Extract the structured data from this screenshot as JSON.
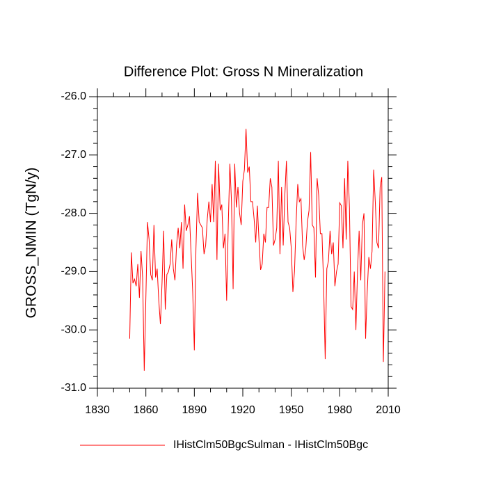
{
  "chart_data": {
    "type": "line",
    "title": "Difference Plot: Gross N Mineralization",
    "y_label": "GROSS_NMIN  (TgN/y)",
    "x": [
      1850,
      1851,
      1852,
      1853,
      1854,
      1855,
      1856,
      1857,
      1858,
      1859,
      1860,
      1861,
      1862,
      1863,
      1864,
      1865,
      1866,
      1867,
      1868,
      1869,
      1870,
      1871,
      1872,
      1873,
      1874,
      1875,
      1876,
      1877,
      1878,
      1879,
      1880,
      1881,
      1882,
      1883,
      1884,
      1885,
      1886,
      1887,
      1888,
      1889,
      1890,
      1891,
      1892,
      1893,
      1894,
      1895,
      1896,
      1897,
      1898,
      1899,
      1900,
      1901,
      1902,
      1903,
      1904,
      1905,
      1906,
      1907,
      1908,
      1909,
      1910,
      1911,
      1912,
      1913,
      1914,
      1915,
      1916,
      1917,
      1918,
      1919,
      1920,
      1921,
      1922,
      1923,
      1924,
      1925,
      1926,
      1927,
      1928,
      1929,
      1930,
      1931,
      1932,
      1933,
      1934,
      1935,
      1936,
      1937,
      1938,
      1939,
      1940,
      1941,
      1942,
      1943,
      1944,
      1945,
      1946,
      1947,
      1948,
      1949,
      1950,
      1951,
      1952,
      1953,
      1954,
      1955,
      1956,
      1957,
      1958,
      1959,
      1960,
      1961,
      1962,
      1963,
      1964,
      1965,
      1966,
      1967,
      1968,
      1969,
      1970,
      1971,
      1972,
      1973,
      1974,
      1975,
      1976,
      1977,
      1978,
      1979,
      1980,
      1981,
      1982,
      1983,
      1984,
      1985,
      1986,
      1987,
      1988,
      1989,
      1990,
      1991,
      1992,
      1993,
      1994,
      1995,
      1996,
      1997,
      1998,
      1999,
      2000,
      2001,
      2002,
      2003,
      2004,
      2005,
      2006,
      2007,
      2008
    ],
    "series": [
      {
        "name": "IHistClm50BgcSulman - IHistClm50Bgc",
        "color": "#ff0000",
        "values": [
          -30.15,
          -28.67,
          -29.2,
          -29.13,
          -29.25,
          -28.87,
          -29.45,
          -28.65,
          -29.1,
          -30.7,
          -29.45,
          -28.15,
          -28.45,
          -29.05,
          -29.15,
          -28.2,
          -29.1,
          -28.95,
          -29.5,
          -29.9,
          -29.2,
          -28.3,
          -29.65,
          -29.05,
          -29.0,
          -28.87,
          -28.45,
          -28.95,
          -29.15,
          -28.55,
          -28.25,
          -28.6,
          -28.15,
          -28.95,
          -27.85,
          -28.3,
          -28.2,
          -28.05,
          -28.7,
          -29.35,
          -30.35,
          -28.6,
          -27.65,
          -28.15,
          -28.2,
          -28.25,
          -28.7,
          -28.55,
          -28.1,
          -27.8,
          -28.15,
          -27.5,
          -28.15,
          -27.1,
          -28.8,
          -27.15,
          -27.95,
          -27.85,
          -28.6,
          -28.35,
          -29.5,
          -28.2,
          -27.15,
          -27.8,
          -29.3,
          -27.15,
          -27.9,
          -27.55,
          -28.0,
          -28.2,
          -27.45,
          -27.25,
          -26.55,
          -27.3,
          -27.2,
          -27.8,
          -27.8,
          -28.1,
          -28.5,
          -27.87,
          -28.45,
          -28.97,
          -28.87,
          -28.35,
          -28.5,
          -27.9,
          -27.9,
          -27.4,
          -27.55,
          -28.55,
          -28.45,
          -28.25,
          -27.1,
          -28.7,
          -27.55,
          -28.55,
          -27.7,
          -27.1,
          -28.15,
          -28.25,
          -28.6,
          -29.35,
          -29.0,
          -28.15,
          -27.5,
          -27.8,
          -27.75,
          -28.55,
          -28.8,
          -28.6,
          -28.15,
          -27.95,
          -26.95,
          -28.2,
          -28.25,
          -29.1,
          -27.4,
          -27.7,
          -28.35,
          -28.35,
          -29.2,
          -30.5,
          -28.95,
          -28.82,
          -28.3,
          -28.7,
          -28.5,
          -29.25,
          -29.0,
          -28.87,
          -27.82,
          -27.87,
          -28.6,
          -27.4,
          -28.45,
          -27.1,
          -27.9,
          -29.6,
          -29.65,
          -29.0,
          -30.0,
          -29.0,
          -28.3,
          -29.15,
          -28.2,
          -28.0,
          -30.15,
          -29.35,
          -28.75,
          -28.95,
          -28.65,
          -27.25,
          -27.8,
          -28.5,
          -28.6,
          -27.55,
          -27.38,
          -30.55,
          -29.0
        ]
      }
    ],
    "xlim": [
      1830,
      2010
    ],
    "xticks": [
      1830,
      1860,
      1890,
      1920,
      1950,
      1980,
      2010
    ],
    "xminorticks": [
      1840,
      1850,
      1870,
      1880,
      1900,
      1910,
      1930,
      1940,
      1960,
      1970,
      1990,
      2000
    ],
    "ylim": [
      -31,
      -26
    ],
    "yticks": [
      {
        "value": -31,
        "label": "-31.0"
      },
      {
        "value": -30,
        "label": "-30.0"
      },
      {
        "value": -29,
        "label": "-29.0"
      },
      {
        "value": -28,
        "label": "-28.0"
      },
      {
        "value": -27,
        "label": "-27.0"
      },
      {
        "value": -26,
        "label": "-26.0"
      }
    ],
    "yminorticks": [
      -30.8,
      -30.6,
      -30.4,
      -30.2,
      -29.8,
      -29.6,
      -29.4,
      -29.2,
      -28.8,
      -28.6,
      -28.4,
      -28.2,
      -27.8,
      -27.6,
      -27.4,
      -27.2,
      -26.8,
      -26.6,
      -26.4,
      -26.2
    ],
    "grid": false,
    "legend": "bottom"
  }
}
